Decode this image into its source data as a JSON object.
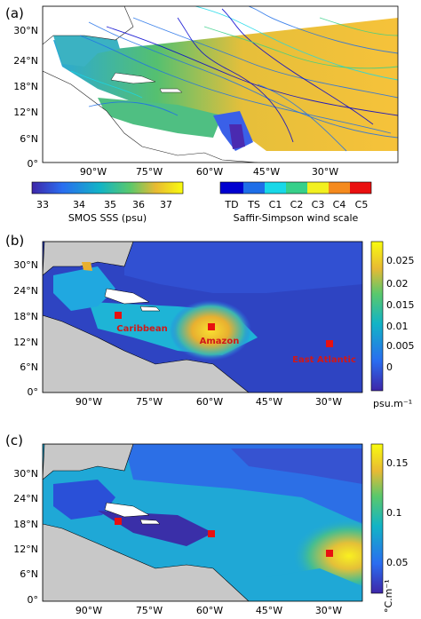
{
  "panels": [
    {
      "label": "(a)",
      "y_ticks": [
        "30°N",
        "24°N",
        "18°N",
        "12°N",
        "6°N",
        "0°"
      ],
      "x_ticks": [
        "90°W",
        "75°W",
        "60°W",
        "45°W",
        "30°W"
      ],
      "colorbar_sss": {
        "ticks": [
          "33",
          "34",
          "35",
          "36",
          "37"
        ],
        "label": "SMOS SSS (psu)"
      },
      "colorbar_wind": {
        "ticks": [
          "TD",
          "TS",
          "C1",
          "C2",
          "C3",
          "C4",
          "C5"
        ],
        "label": "Saffir-Simpson wind scale",
        "colors": [
          "#0000d0",
          "#1e6ee8",
          "#18d8e8",
          "#37d08a",
          "#f2f020",
          "#f58a1e",
          "#ea1010"
        ]
      }
    },
    {
      "label": "(b)",
      "y_ticks": [
        "30°N",
        "24°N",
        "18°N",
        "12°N",
        "6°N",
        "0°"
      ],
      "x_ticks": [
        "90°W",
        "75°W",
        "60°W",
        "45°W",
        "30°W"
      ],
      "colorbar_ticks": [
        "0.025",
        "0.02",
        "0.015",
        "0.01",
        "0.005",
        "0"
      ],
      "colorbar_unit": "psu.m⁻¹",
      "regions": [
        "Caribbean",
        "Amazon",
        "East Atlantic"
      ]
    },
    {
      "label": "(c)",
      "y_ticks": [
        "30°N",
        "24°N",
        "18°N",
        "12°N",
        "6°N",
        "0°"
      ],
      "x_ticks": [
        "90°W",
        "75°W",
        "60°W",
        "45°W",
        "30°W"
      ],
      "colorbar_ticks": [
        "0.15",
        "0.1",
        "0.05"
      ],
      "colorbar_unit": "°C.m⁻¹"
    }
  ],
  "colors": {
    "land": "#c8c8c8",
    "marker": "#e81010",
    "region_label": "#d01818"
  }
}
